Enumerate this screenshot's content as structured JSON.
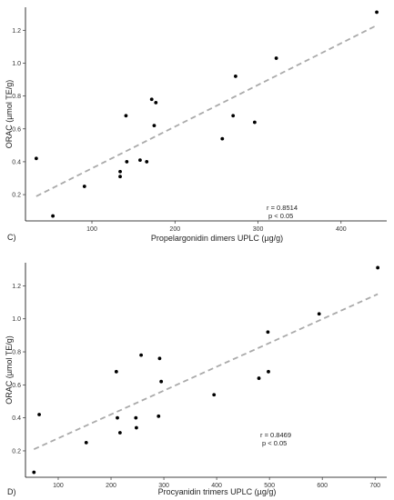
{
  "chart_data": [
    {
      "type": "scatter",
      "panel_label": "C)",
      "xlabel": "Propelargonidin dimers UPLC (µg/g)",
      "ylabel": "ORAC (µmol TE/g)",
      "xlim": [
        20,
        455
      ],
      "ylim": [
        0.04,
        1.34
      ],
      "xticks": [
        100,
        200,
        300,
        400
      ],
      "yticks": [
        0.2,
        0.4,
        0.6,
        0.8,
        1.0,
        1.2
      ],
      "ytick_labels": [
        "0.2",
        "0.4",
        "0.6",
        "0.8",
        "1.0",
        "1.2"
      ],
      "x": [
        33,
        53,
        91,
        134,
        134,
        141,
        142,
        158,
        166,
        172,
        175,
        177,
        257,
        270,
        273,
        296,
        322,
        443
      ],
      "y": [
        0.42,
        0.07,
        0.25,
        0.34,
        0.31,
        0.68,
        0.4,
        0.41,
        0.4,
        0.78,
        0.62,
        0.76,
        0.54,
        0.68,
        0.92,
        0.64,
        1.03,
        1.31
      ],
      "trend": {
        "x": [
          33,
          443
        ],
        "y": [
          0.19,
          1.23
        ]
      },
      "annotation": [
        "r = 0.8514",
        "p < 0.05"
      ],
      "grid": false
    },
    {
      "type": "scatter",
      "panel_label": "D)",
      "xlabel": "Procyanidin trimers UPLC (µg/g)",
      "ylabel": "ORAC (µmol TE/g)",
      "xlim": [
        38,
        722
      ],
      "ylim": [
        0.04,
        1.34
      ],
      "xticks": [
        100,
        200,
        300,
        400,
        500,
        600,
        700
      ],
      "yticks": [
        0.2,
        0.4,
        0.6,
        0.8,
        1.0,
        1.2
      ],
      "ytick_labels": [
        "0.2",
        "0.4",
        "0.6",
        "0.8",
        "1.0",
        "1.2"
      ],
      "x": [
        54,
        64,
        153,
        210,
        212,
        217,
        247,
        248,
        257,
        290,
        292,
        295,
        395,
        480,
        497,
        498,
        594,
        705
      ],
      "y": [
        0.07,
        0.42,
        0.25,
        0.68,
        0.4,
        0.31,
        0.4,
        0.34,
        0.78,
        0.41,
        0.76,
        0.62,
        0.54,
        0.64,
        0.92,
        0.68,
        1.03,
        1.31
      ],
      "trend": {
        "x": [
          54,
          705
        ],
        "y": [
          0.21,
          1.15
        ]
      },
      "annotation": [
        "r = 0.8469",
        "p < 0.05"
      ],
      "grid": false
    }
  ]
}
